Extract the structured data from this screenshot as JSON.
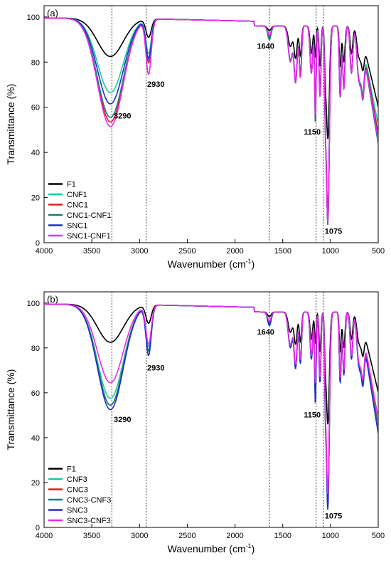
{
  "colors": {
    "F1": "#000000",
    "CNF": "#1ec99b",
    "CNC": "#e8181e",
    "CNC-CNF": "#157f7a",
    "SNC": "#1f2fc7",
    "SNC-CNF": "#ea2bea"
  },
  "chart_data": [
    {
      "type": "line",
      "panel_label": "(a)",
      "xlabel": "Wavenumber (cm",
      "xlabel_sup": "-1",
      "xlabel_tail": ")",
      "ylabel": "Transmittance (%)",
      "xlim": [
        4000,
        500
      ],
      "ylim": [
        0,
        105
      ],
      "x_ticks": [
        4000,
        3500,
        3000,
        2500,
        2000,
        1500,
        1000,
        500
      ],
      "y_ticks": [
        0,
        20,
        40,
        60,
        80,
        100
      ],
      "reference_lines": [
        3290,
        2930,
        1640,
        1150,
        1075
      ],
      "annotations": [
        {
          "text": "3290",
          "x": 3270,
          "y": 55
        },
        {
          "text": "2930",
          "x": 2920,
          "y": 69
        },
        {
          "text": "1640",
          "x": 1770,
          "y": 86
        },
        {
          "text": "1150",
          "x": 1280,
          "y": 48
        },
        {
          "text": "1075",
          "x": 1060,
          "y": 4
        }
      ],
      "legend_position": "bottom-left",
      "series": [
        {
          "name": "F1",
          "color_key": "F1",
          "min_3290": 82,
          "min_2930": 89,
          "min_1640": 95,
          "min_1150": 82,
          "min_1075": 48,
          "tail": 56
        },
        {
          "name": "CNF1",
          "color_key": "CNF",
          "min_3290": 66,
          "min_2930": 82,
          "min_1640": 92,
          "min_1150": 62,
          "min_1075": 14,
          "tail": 42
        },
        {
          "name": "CNC1",
          "color_key": "CNC",
          "min_3290": 53,
          "min_2930": 78,
          "min_1640": 92,
          "min_1150": 57,
          "min_1075": 12,
          "tail": 38
        },
        {
          "name": "CNC1-CNF1",
          "color_key": "CNC-CNF",
          "min_3290": 55,
          "min_2930": 79,
          "min_1640": 91,
          "min_1150": 53,
          "min_1075": 10,
          "tail": 33
        },
        {
          "name": "SNC1",
          "color_key": "SNC",
          "min_3290": 61,
          "min_2930": 80,
          "min_1640": 93,
          "min_1150": 59,
          "min_1075": 12,
          "tail": 36
        },
        {
          "name": "SNC1-CNF1",
          "color_key": "SNC-CNF",
          "min_3290": 51,
          "min_2930": 73,
          "min_1640": 93,
          "min_1150": 56,
          "min_1075": 11,
          "tail": 35
        }
      ]
    },
    {
      "type": "line",
      "panel_label": "(b)",
      "xlabel": "Wavenumber (cm",
      "xlabel_sup": "-1",
      "xlabel_tail": ")",
      "ylabel": "Transmittance (%)",
      "xlim": [
        4000,
        500
      ],
      "ylim": [
        0,
        105
      ],
      "x_ticks": [
        4000,
        3500,
        3000,
        2500,
        2000,
        1500,
        1000,
        500
      ],
      "y_ticks": [
        0,
        20,
        40,
        60,
        80,
        100
      ],
      "reference_lines": [
        3290,
        2930,
        1640,
        1150,
        1075
      ],
      "annotations": [
        {
          "text": "3290",
          "x": 3270,
          "y": 47
        },
        {
          "text": "2930",
          "x": 2920,
          "y": 70
        },
        {
          "text": "1640",
          "x": 1770,
          "y": 86
        },
        {
          "text": "1150",
          "x": 1280,
          "y": 49
        },
        {
          "text": "1075",
          "x": 1060,
          "y": 4
        }
      ],
      "legend_position": "bottom-left",
      "series": [
        {
          "name": "F1",
          "color_key": "F1",
          "min_3290": 82,
          "min_2930": 89,
          "min_1640": 95,
          "min_1150": 82,
          "min_1075": 48,
          "tail": 56
        },
        {
          "name": "CNF3",
          "color_key": "CNF",
          "min_3290": 57,
          "min_2930": 79,
          "min_1640": 92,
          "min_1150": 60,
          "min_1075": 14,
          "tail": 36
        },
        {
          "name": "CNC3",
          "color_key": "CNC",
          "min_3290": 54,
          "min_2930": 77,
          "min_1640": 92,
          "min_1150": 58,
          "min_1075": 12,
          "tail": 34
        },
        {
          "name": "CNC3-CNF3",
          "color_key": "CNC-CNF",
          "min_3290": 54,
          "min_2930": 77,
          "min_1640": 91,
          "min_1150": 57,
          "min_1075": 12,
          "tail": 33
        },
        {
          "name": "SNC3",
          "color_key": "SNC",
          "min_3290": 52,
          "min_2930": 75,
          "min_1640": 91,
          "min_1150": 55,
          "min_1075": 10,
          "tail": 31
        },
        {
          "name": "SNC3-CNF3",
          "color_key": "SNC-CNF",
          "min_3290": 64,
          "min_2930": 80,
          "min_1640": 93,
          "min_1150": 64,
          "min_1075": 17,
          "tail": 39
        }
      ]
    }
  ]
}
